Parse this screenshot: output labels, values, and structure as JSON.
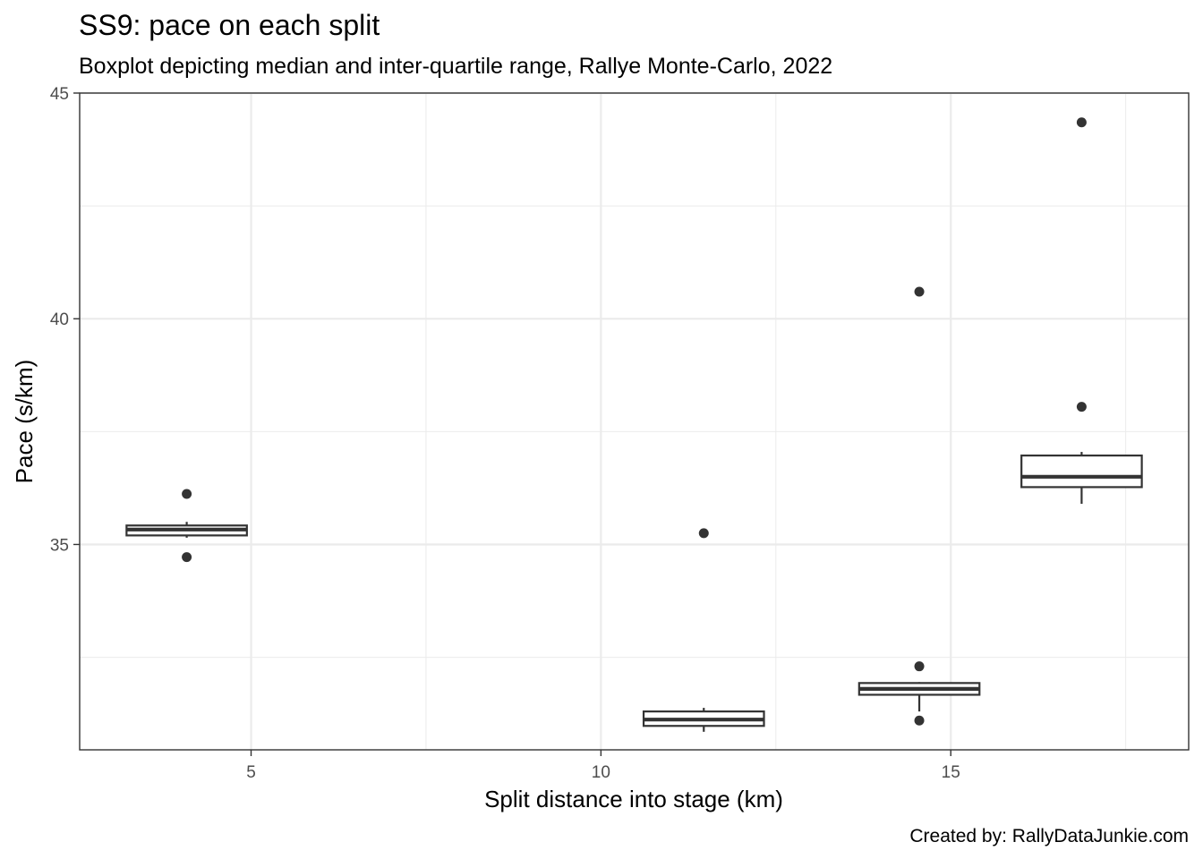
{
  "chart_data": {
    "type": "boxplot",
    "title": "SS9: pace on each split",
    "subtitle": "Boxplot depicting median and inter-quartile range, Rallye Monte-Carlo, 2022",
    "caption": "Created by: RallyDataJunkie.com",
    "xlabel": "Split distance into stage (km)",
    "ylabel": "Pace (s/km)",
    "xlim": [
      2.55,
      18.4
    ],
    "ylim": [
      30.45,
      45.0
    ],
    "x_ticks": [
      5,
      10,
      15
    ],
    "x_tick_labels": [
      "5",
      "10",
      "15"
    ],
    "y_ticks": [
      35,
      40,
      45
    ],
    "y_tick_labels": [
      "35",
      "40",
      "45"
    ],
    "grid": true,
    "boxes": [
      {
        "x": 4.08,
        "width": 1.72,
        "whisker_low": 35.15,
        "q1": 35.2,
        "median": 35.33,
        "q3": 35.42,
        "whisker_high": 35.5,
        "outliers": [
          36.12,
          34.72
        ]
      },
      {
        "x": 11.47,
        "width": 1.72,
        "whisker_low": 30.85,
        "q1": 30.98,
        "median": 31.12,
        "q3": 31.3,
        "whisker_high": 31.38,
        "outliers": [
          35.25
        ]
      },
      {
        "x": 14.55,
        "width": 1.72,
        "whisker_low": 31.3,
        "q1": 31.67,
        "median": 31.8,
        "q3": 31.93,
        "whisker_high": 31.95,
        "outliers": [
          40.6,
          32.3,
          31.1
        ]
      },
      {
        "x": 16.87,
        "width": 1.72,
        "whisker_low": 35.9,
        "q1": 36.27,
        "median": 36.5,
        "q3": 36.97,
        "whisker_high": 37.05,
        "outliers": [
          44.35,
          38.05
        ]
      }
    ]
  }
}
